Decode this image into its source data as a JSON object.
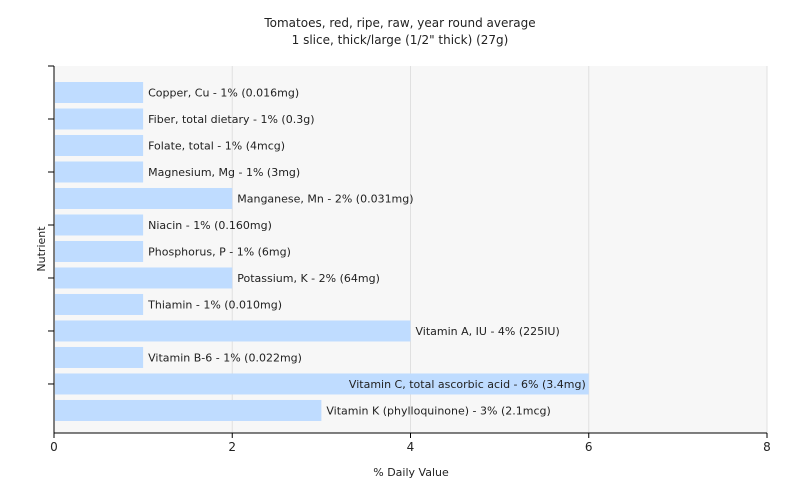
{
  "chart_data": {
    "type": "bar",
    "orientation": "horizontal",
    "title": "Tomatoes, red, ripe, raw, year round average",
    "subtitle": "1 slice, thick/large (1/2\" thick) (27g)",
    "xlabel": "% Daily Value",
    "ylabel": "Nutrient",
    "xlim": [
      0,
      8
    ],
    "xticks": [
      "0",
      "2",
      "4",
      "6",
      "8"
    ],
    "grid": true,
    "legend": "none",
    "categories": [
      "Copper, Cu",
      "Fiber, total dietary",
      "Folate, total",
      "Magnesium, Mg",
      "Manganese, Mn",
      "Niacin",
      "Phosphorus, P",
      "Potassium, K",
      "Thiamin",
      "Vitamin A, IU",
      "Vitamin B-6",
      "Vitamin C, total ascorbic acid",
      "Vitamin K (phylloquinone)"
    ],
    "values": [
      1,
      1,
      1,
      1,
      2,
      1,
      1,
      2,
      1,
      4,
      1,
      6,
      3
    ],
    "labels": [
      "Copper, Cu - 1% (0.016mg)",
      "Fiber, total dietary - 1% (0.3g)",
      "Folate, total - 1% (4mcg)",
      "Magnesium, Mg - 1% (3mg)",
      "Manganese, Mn - 2% (0.031mg)",
      "Niacin - 1% (0.160mg)",
      "Phosphorus, P - 1% (6mg)",
      "Potassium, K - 2% (64mg)",
      "Thiamin - 1% (0.010mg)",
      "Vitamin A, IU - 4% (225IU)",
      "Vitamin B-6 - 1% (0.022mg)",
      "Vitamin C, total ascorbic acid - 6% (3.4mg)",
      "Vitamin K (phylloquinone) - 3% (2.1mcg)"
    ],
    "colors": {
      "bar": "#bfdcff",
      "grid": "#e0e0e0",
      "plot_bg": "#f7f7f7",
      "axis": "#000000"
    }
  }
}
